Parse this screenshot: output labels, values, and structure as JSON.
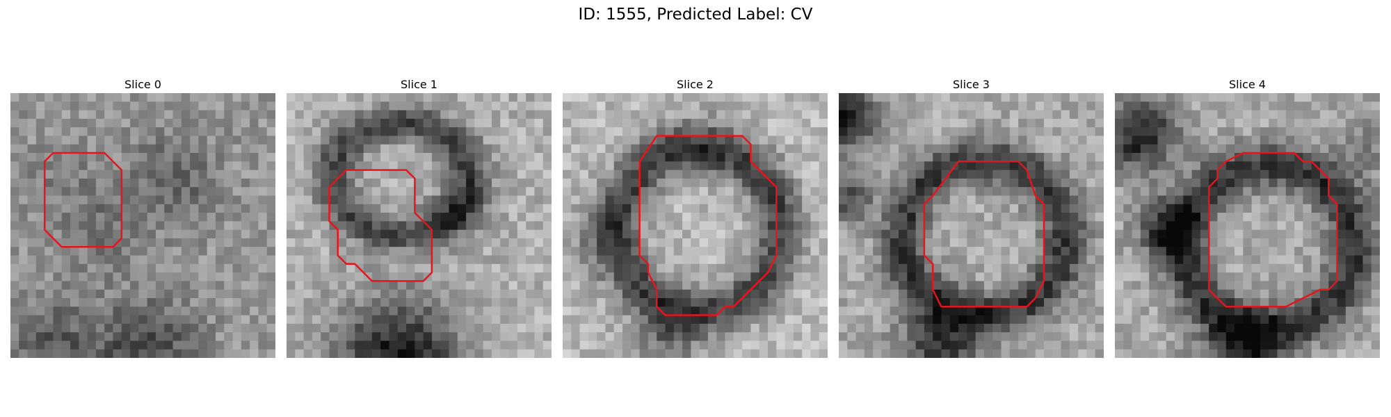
{
  "figure": {
    "title": "ID: 1555, Predicted Label: CV"
  },
  "panels": [
    {
      "title": "Slice 0"
    },
    {
      "title": "Slice 1"
    },
    {
      "title": "Slice 2"
    },
    {
      "title": "Slice 3"
    },
    {
      "title": "Slice 4"
    }
  ],
  "colors": {
    "contour": "#e8141c",
    "background": "#ffffff"
  }
}
